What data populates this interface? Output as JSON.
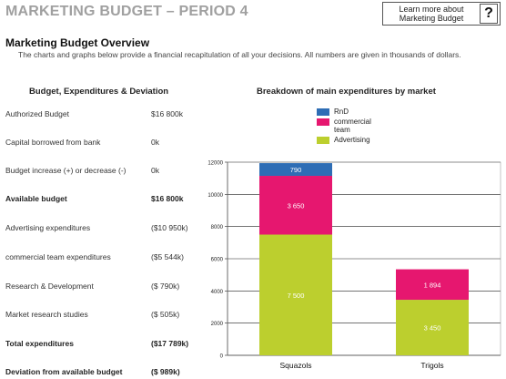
{
  "header": {
    "title": "MARKETING BUDGET – PERIOD 4",
    "help_text": "Learn more about Marketing Budget",
    "help_icon": "?"
  },
  "overview": {
    "title": "Marketing Budget Overview",
    "description": "The charts and graphs below provide a financial recapitulation of all your decisions. All numbers are given in thousands of dollars."
  },
  "budget": {
    "heading": "Budget, Expenditures & Deviation",
    "rows": [
      {
        "label": "Authorized Budget",
        "value": "$16 800k",
        "bold": false
      },
      {
        "label": "Capital borrowed from bank",
        "value": "0k",
        "bold": false
      },
      {
        "label": "Budget increase (+) or decrease (-)",
        "value": "0k",
        "bold": false
      },
      {
        "label": "Available budget",
        "value": "$16 800k",
        "bold": true
      },
      {
        "label": "Advertising expenditures",
        "value": "($10 950k)",
        "bold": false
      },
      {
        "label": "commercial team expenditures",
        "value": "($5 544k)",
        "bold": false
      },
      {
        "label": "Research & Development",
        "value": "($ 790k)",
        "bold": false
      },
      {
        "label": "Market research studies",
        "value": "($ 505k)",
        "bold": false
      },
      {
        "label": "Total expenditures",
        "value": "($17 789k)",
        "bold": true
      },
      {
        "label": "Deviation from available budget",
        "value": "($ 989k)",
        "bold": true
      }
    ]
  },
  "chart_data": {
    "type": "bar",
    "stacked": true,
    "title": "Breakdown of main expenditures by market",
    "categories": [
      "Squazols",
      "Trigols"
    ],
    "series": [
      {
        "name": "Advertising",
        "color": "#bccf2e",
        "values": [
          7500,
          3450
        ],
        "labels": [
          "7 500",
          "3 450"
        ]
      },
      {
        "name": "commercial team",
        "color": "#e6176f",
        "values": [
          3650,
          1894
        ],
        "labels": [
          "3 650",
          "1 894"
        ]
      },
      {
        "name": "RnD",
        "color": "#2e6db5",
        "values": [
          790,
          0
        ],
        "labels": [
          "790",
          ""
        ]
      }
    ],
    "legend_order": [
      "RnD",
      "commercial team",
      "Advertising"
    ],
    "ylim": [
      0,
      12000
    ],
    "yticks": [
      0,
      2000,
      4000,
      6000,
      8000,
      10000,
      12000
    ],
    "grid": true,
    "legend_position": "top"
  }
}
